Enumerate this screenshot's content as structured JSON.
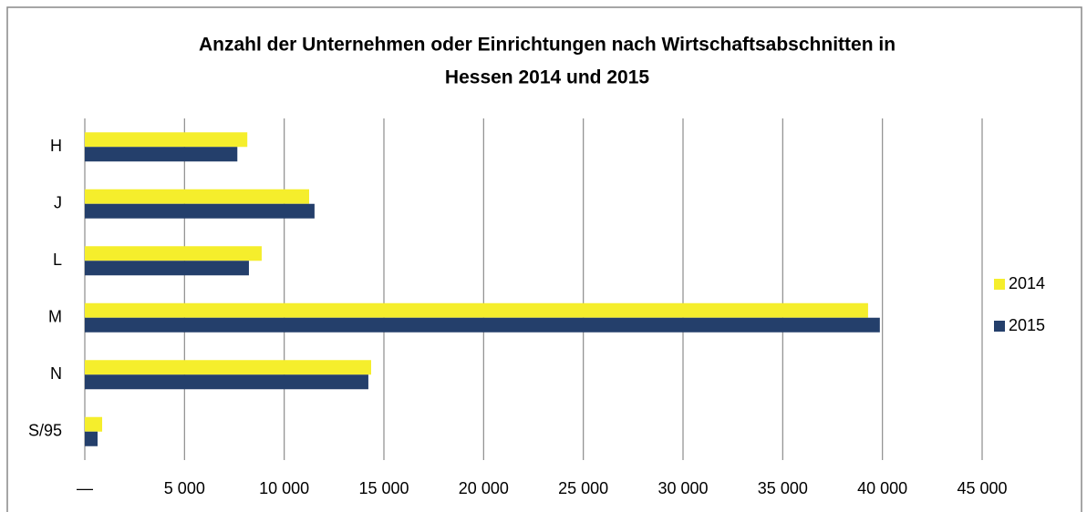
{
  "chart_data": {
    "type": "bar",
    "orientation": "horizontal",
    "title": [
      "Anzahl der Unternehmen oder Einrichtungen nach Wirtschaftsabschnitten in",
      "Hessen 2014 und 2015"
    ],
    "categories": [
      "H",
      "J",
      "L",
      "M",
      "N",
      "S/95"
    ],
    "series": [
      {
        "name": "2014",
        "color": "#f5ee2c",
        "values": [
          8150,
          11250,
          8870,
          39280,
          14360,
          870
        ]
      },
      {
        "name": "2015",
        "color": "#243f6b",
        "values": [
          7650,
          11520,
          8230,
          39870,
          14220,
          640
        ]
      }
    ],
    "xlim": [
      0,
      45000
    ],
    "xticks": [
      {
        "value": 0,
        "label": "—"
      },
      {
        "value": 5000,
        "label": "5 000"
      },
      {
        "value": 10000,
        "label": "10 000"
      },
      {
        "value": 15000,
        "label": "15 000"
      },
      {
        "value": 20000,
        "label": "20 000"
      },
      {
        "value": 25000,
        "label": "25 000"
      },
      {
        "value": 30000,
        "label": "30 000"
      },
      {
        "value": 35000,
        "label": "35 000"
      },
      {
        "value": 40000,
        "label": "40 000"
      },
      {
        "value": 45000,
        "label": "45 000"
      }
    ],
    "grid": true,
    "legend": "right"
  }
}
